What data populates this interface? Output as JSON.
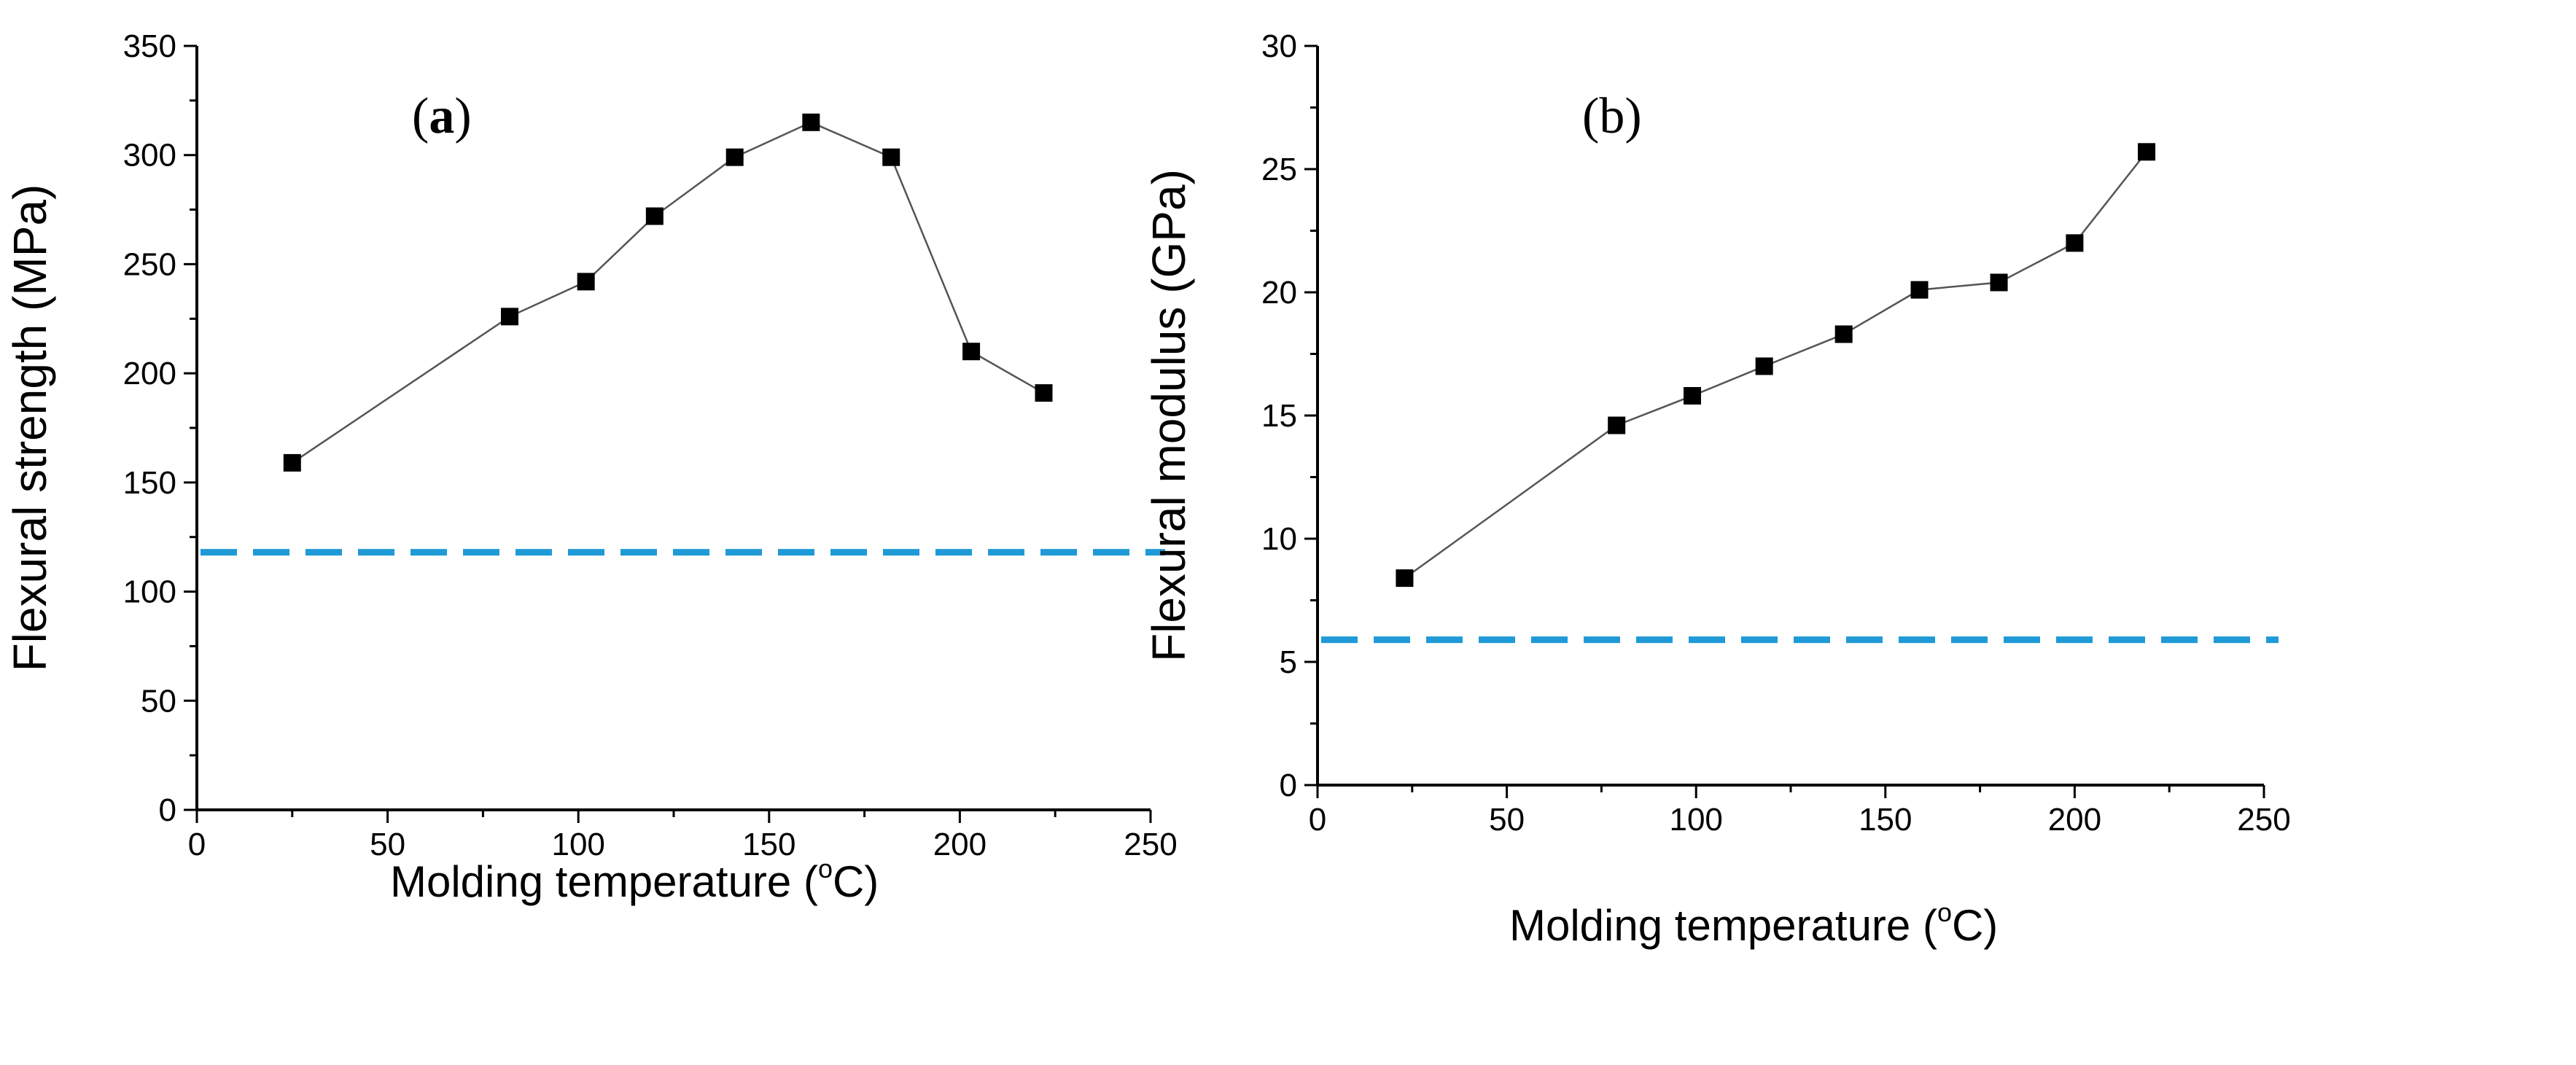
{
  "chart_data": [
    {
      "type": "line",
      "panel_label_open": "(",
      "panel_label_letter": "a",
      "panel_label_close": ")",
      "xlabel_main": "Molding temperature (",
      "xlabel_degree": "o",
      "xlabel_unit": "C)",
      "ylabel": "Flexural strength (MPa)",
      "xlim": [
        0,
        250
      ],
      "ylim": [
        0,
        350
      ],
      "x_ticks": [
        0,
        50,
        100,
        150,
        200,
        250
      ],
      "y_ticks": [
        0,
        50,
        100,
        150,
        200,
        250,
        300,
        350
      ],
      "x_tick_labels": [
        "0",
        "50",
        "100",
        "150",
        "200",
        "250"
      ],
      "y_tick_labels": [
        "0",
        "50",
        "100",
        "150",
        "200",
        "250",
        "300",
        "350"
      ],
      "grid": false,
      "series": [
        {
          "name": "Flexural strength",
          "marker": "square",
          "color": "#000000",
          "x": [
            25,
            82,
            102,
            120,
            141,
            161,
            182,
            203,
            222
          ],
          "y": [
            159,
            226,
            242,
            272,
            299,
            315,
            299,
            210,
            191
          ]
        }
      ],
      "reference_line": {
        "y": 118,
        "style": "dashed",
        "color": "#1f9ad6"
      }
    },
    {
      "type": "line",
      "panel_label_open": "(",
      "panel_label_letter": "b",
      "panel_label_close": ")",
      "xlabel_main": "Molding temperature (",
      "xlabel_degree": "o",
      "xlabel_unit": "C)",
      "ylabel": "Flexural modulus (GPa)",
      "xlim": [
        0,
        250
      ],
      "ylim": [
        0,
        30
      ],
      "x_ticks": [
        0,
        50,
        100,
        150,
        200,
        250
      ],
      "y_ticks": [
        0,
        5,
        10,
        15,
        20,
        25,
        30
      ],
      "x_tick_labels": [
        "0",
        "50",
        "100",
        "150",
        "200",
        "250"
      ],
      "y_tick_labels": [
        "0",
        "5",
        "10",
        "15",
        "20",
        "25",
        "30"
      ],
      "grid": false,
      "series": [
        {
          "name": "Flexural modulus",
          "marker": "square",
          "color": "#000000",
          "x": [
            23,
            79,
            99,
            118,
            139,
            159,
            180,
            200,
            219
          ],
          "y": [
            8.4,
            14.6,
            15.8,
            17.0,
            18.3,
            20.1,
            20.4,
            22.0,
            25.7
          ]
        }
      ],
      "reference_line": {
        "y": 5.9,
        "style": "dashed",
        "color": "#1f9ad6"
      }
    }
  ]
}
